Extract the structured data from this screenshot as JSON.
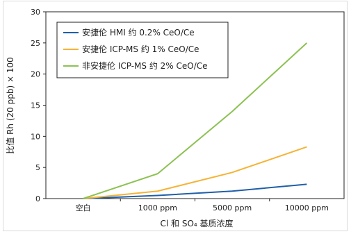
{
  "chart_data": {
    "type": "line",
    "categories": [
      "空白",
      "1000 ppm",
      "5000 ppm",
      "10000 ppm"
    ],
    "series": [
      {
        "name": "安捷伦 HMI 约 0.2% CeO/Ce",
        "values": [
          0,
          0.5,
          1.2,
          2.3
        ],
        "color": "#1f5fa8"
      },
      {
        "name": "安捷伦 ICP-MS 约 1% CeO/Ce",
        "values": [
          0,
          1.2,
          4.2,
          8.3
        ],
        "color": "#f5b335"
      },
      {
        "name": "非安捷伦 ICP-MS 约 2% CeO/Ce",
        "values": [
          0,
          4.0,
          14.0,
          25.0
        ],
        "color": "#8cc152"
      }
    ],
    "xlabel": "Cl 和 SO₄ 基质浓度",
    "ylabel": "比值 Rh (20 ppb) × 100",
    "ylim": [
      0,
      30
    ],
    "yticks": [
      0,
      5,
      10,
      15,
      20,
      25,
      30
    ],
    "grid": false,
    "legend": "top-left"
  }
}
